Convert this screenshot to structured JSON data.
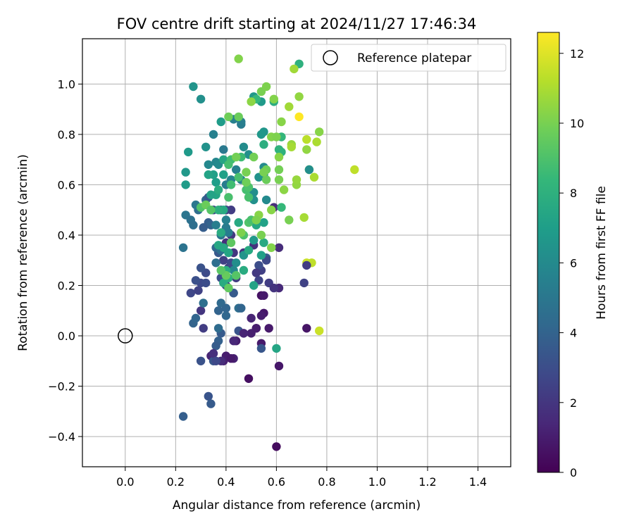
{
  "chart_data": {
    "type": "scatter",
    "title": "FOV centre drift starting at 2024/11/27 17:46:34",
    "xlabel": "Angular distance from reference (arcmin)",
    "ylabel": "Rotation from reference (arcmin)",
    "xlim": [
      -0.17,
      1.53
    ],
    "ylim": [
      -0.52,
      1.18
    ],
    "xticks": [
      0.0,
      0.2,
      0.4,
      0.6,
      0.8,
      1.0,
      1.2,
      1.4
    ],
    "xtick_labels": [
      "0.0",
      "0.2",
      "0.4",
      "0.6",
      "0.8",
      "1.0",
      "1.2",
      "1.4"
    ],
    "yticks": [
      -0.4,
      -0.2,
      0.0,
      0.2,
      0.4,
      0.6,
      0.8,
      1.0
    ],
    "ytick_labels": [
      "−0.4",
      "−0.2",
      "0.0",
      "0.2",
      "0.4",
      "0.6",
      "0.8",
      "1.0"
    ],
    "grid": true,
    "legend": {
      "position": "top-right",
      "entries": [
        "Reference platepar"
      ]
    },
    "reference_point": {
      "label": "Reference platepar",
      "x": 0.0,
      "y": 0.0,
      "marker": "open-circle"
    },
    "colorbar": {
      "label": "Hours from first FF file",
      "colormap": "viridis",
      "range": [
        0,
        12.6
      ],
      "ticks": [
        0,
        2,
        4,
        6,
        8,
        10,
        12
      ],
      "tick_labels": [
        "0",
        "2",
        "4",
        "6",
        "8",
        "10",
        "12"
      ]
    },
    "colormap_stops": [
      "#440154",
      "#482878",
      "#3e4989",
      "#31688e",
      "#26828e",
      "#1f9e89",
      "#35b779",
      "#6ece58",
      "#b5de2b",
      "#fde725"
    ],
    "points": [
      [
        0.6,
        -0.44,
        0.4
      ],
      [
        0.49,
        -0.17,
        0.5
      ],
      [
        0.61,
        -0.12,
        0.8
      ],
      [
        0.54,
        -0.03,
        0.9
      ],
      [
        0.4,
        -0.08,
        1.0
      ],
      [
        0.43,
        -0.09,
        1.2
      ],
      [
        0.39,
        -0.1,
        1.1
      ],
      [
        0.34,
        -0.08,
        1.3
      ],
      [
        0.44,
        -0.02,
        1.0
      ],
      [
        0.5,
        0.01,
        1.1
      ],
      [
        0.52,
        0.03,
        1.2
      ],
      [
        0.57,
        0.03,
        0.9
      ],
      [
        0.72,
        0.03,
        0.7
      ],
      [
        0.55,
        0.09,
        0.8
      ],
      [
        0.54,
        0.08,
        1.0
      ],
      [
        0.54,
        0.16,
        0.6
      ],
      [
        0.5,
        0.07,
        1.3
      ],
      [
        0.47,
        0.01,
        1.5
      ],
      [
        0.61,
        0.19,
        1.5
      ],
      [
        0.61,
        0.35,
        1.6
      ],
      [
        0.51,
        0.36,
        1.8
      ],
      [
        0.47,
        0.33,
        1.9
      ],
      [
        0.43,
        0.33,
        2.0
      ],
      [
        0.42,
        0.4,
        2.1
      ],
      [
        0.4,
        0.37,
        1.7
      ],
      [
        0.59,
        0.51,
        1.6
      ],
      [
        0.42,
        0.5,
        2.3
      ],
      [
        0.4,
        0.5,
        2.5
      ],
      [
        0.44,
        0.23,
        2.2
      ],
      [
        0.4,
        0.2,
        2.4
      ],
      [
        0.43,
        0.17,
        2.6
      ],
      [
        0.3,
        0.1,
        2.0
      ],
      [
        0.31,
        0.03,
        2.3
      ],
      [
        0.26,
        0.17,
        2.7
      ],
      [
        0.29,
        0.18,
        2.5
      ],
      [
        0.3,
        0.21,
        2.8
      ],
      [
        0.32,
        0.21,
        3.0
      ],
      [
        0.28,
        0.22,
        3.1
      ],
      [
        0.32,
        0.25,
        2.9
      ],
      [
        0.3,
        0.27,
        3.2
      ],
      [
        0.38,
        0.23,
        3.0
      ],
      [
        0.41,
        0.27,
        2.1
      ],
      [
        0.39,
        0.3,
        2.4
      ],
      [
        0.42,
        0.29,
        2.8
      ],
      [
        0.37,
        0.33,
        3.5
      ],
      [
        0.45,
        0.02,
        3.3
      ],
      [
        0.38,
        0.01,
        3.6
      ],
      [
        0.37,
        -0.02,
        3.9
      ],
      [
        0.35,
        -0.1,
        3.4
      ],
      [
        0.3,
        -0.1,
        3.2
      ],
      [
        0.36,
        -0.04,
        3.7
      ],
      [
        0.54,
        -0.05,
        3.4
      ],
      [
        0.33,
        -0.24,
        3.3
      ],
      [
        0.34,
        -0.27,
        3.6
      ],
      [
        0.23,
        -0.32,
        3.8
      ],
      [
        0.27,
        0.05,
        4.0
      ],
      [
        0.28,
        0.07,
        4.1
      ],
      [
        0.31,
        0.13,
        4.6
      ],
      [
        0.38,
        0.13,
        4.3
      ],
      [
        0.4,
        0.11,
        4.1
      ],
      [
        0.37,
        0.1,
        4.0
      ],
      [
        0.4,
        0.08,
        4.2
      ],
      [
        0.45,
        0.11,
        4.5
      ],
      [
        0.46,
        0.11,
        4.1
      ],
      [
        0.37,
        0.03,
        4.4
      ],
      [
        0.43,
        0.17,
        3.6
      ],
      [
        0.33,
        0.45,
        3.8
      ],
      [
        0.34,
        0.44,
        4.0
      ],
      [
        0.32,
        0.54,
        4.2
      ],
      [
        0.33,
        0.55,
        3.5
      ],
      [
        0.35,
        0.5,
        3.0
      ],
      [
        0.38,
        0.5,
        3.4
      ],
      [
        0.36,
        0.35,
        4.2
      ],
      [
        0.36,
        0.29,
        4.6
      ],
      [
        0.38,
        0.34,
        4.7
      ],
      [
        0.23,
        0.35,
        4.8
      ],
      [
        0.24,
        0.48,
        4.9
      ],
      [
        0.26,
        0.46,
        4.7
      ],
      [
        0.27,
        0.44,
        4.6
      ],
      [
        0.29,
        0.5,
        4.5
      ],
      [
        0.28,
        0.52,
        5.0
      ],
      [
        0.31,
        0.43,
        3.7
      ],
      [
        0.38,
        0.4,
        5.0
      ],
      [
        0.4,
        0.43,
        5.2
      ],
      [
        0.41,
        0.41,
        5.3
      ],
      [
        0.36,
        0.44,
        5.4
      ],
      [
        0.4,
        0.46,
        5.5
      ],
      [
        0.4,
        0.6,
        5.3
      ],
      [
        0.42,
        0.62,
        5.7
      ],
      [
        0.44,
        0.66,
        5.5
      ],
      [
        0.46,
        0.62,
        5.6
      ],
      [
        0.36,
        0.69,
        5.8
      ],
      [
        0.33,
        0.68,
        5.9
      ],
      [
        0.37,
        0.68,
        6.0
      ],
      [
        0.39,
        0.74,
        5.1
      ],
      [
        0.46,
        0.84,
        5.2
      ],
      [
        0.46,
        0.85,
        5.4
      ],
      [
        0.43,
        0.86,
        5.5
      ],
      [
        0.47,
        0.75,
        6.1
      ],
      [
        0.49,
        0.72,
        6.3
      ],
      [
        0.55,
        0.67,
        6.0
      ],
      [
        0.53,
        0.63,
        6.4
      ],
      [
        0.55,
        0.64,
        6.5
      ],
      [
        0.51,
        0.57,
        6.2
      ],
      [
        0.56,
        0.54,
        6.0
      ],
      [
        0.51,
        0.54,
        6.3
      ],
      [
        0.56,
        0.31,
        3.6
      ],
      [
        0.53,
        0.22,
        2.6
      ],
      [
        0.57,
        0.21,
        2.3
      ],
      [
        0.56,
        0.3,
        2.8
      ],
      [
        0.54,
        0.26,
        2.4
      ],
      [
        0.53,
        0.28,
        3.0
      ],
      [
        0.52,
        0.25,
        2.1
      ],
      [
        0.43,
        0.26,
        5.9
      ],
      [
        0.44,
        0.29,
        6.2
      ],
      [
        0.47,
        0.32,
        6.5
      ],
      [
        0.51,
        0.38,
        6.7
      ],
      [
        0.54,
        0.93,
        6.8
      ],
      [
        0.51,
        0.95,
        6.7
      ],
      [
        0.55,
        0.81,
        6.6
      ],
      [
        0.54,
        0.8,
        6.7
      ],
      [
        0.38,
        0.85,
        6.9
      ],
      [
        0.35,
        0.8,
        5.5
      ],
      [
        0.3,
        0.94,
        6.3
      ],
      [
        0.27,
        0.99,
        6.5
      ],
      [
        0.25,
        0.73,
        6.8
      ],
      [
        0.24,
        0.65,
        6.7
      ],
      [
        0.24,
        0.6,
        6.9
      ],
      [
        0.32,
        0.75,
        6.4
      ],
      [
        0.36,
        0.61,
        7.0
      ],
      [
        0.35,
        0.64,
        7.1
      ],
      [
        0.33,
        0.64,
        7.3
      ],
      [
        0.36,
        0.56,
        7.4
      ],
      [
        0.34,
        0.56,
        7.3
      ],
      [
        0.37,
        0.58,
        7.8
      ],
      [
        0.39,
        0.7,
        7.4
      ],
      [
        0.39,
        0.64,
        7.1
      ],
      [
        0.39,
        0.5,
        7.6
      ],
      [
        0.38,
        0.41,
        7.7
      ],
      [
        0.39,
        0.35,
        7.5
      ],
      [
        0.37,
        0.36,
        7.5
      ],
      [
        0.41,
        0.33,
        7.4
      ],
      [
        0.4,
        0.26,
        7.8
      ],
      [
        0.39,
        0.21,
        7.7
      ],
      [
        0.41,
        0.23,
        7.9
      ],
      [
        0.37,
        0.5,
        7.9
      ],
      [
        0.45,
        0.45,
        7.6
      ],
      [
        0.47,
        0.26,
        7.7
      ],
      [
        0.49,
        0.34,
        7.6
      ],
      [
        0.51,
        0.2,
        7.3
      ],
      [
        0.52,
        0.44,
        7.5
      ],
      [
        0.55,
        0.37,
        7.6
      ],
      [
        0.55,
        0.45,
        7.2
      ],
      [
        0.54,
        0.32,
        7.1
      ],
      [
        0.55,
        0.76,
        7.9
      ],
      [
        0.6,
        -0.05,
        7.4
      ],
      [
        0.62,
        0.73,
        8.0
      ],
      [
        0.61,
        0.74,
        8.1
      ],
      [
        0.62,
        0.79,
        8.3
      ],
      [
        0.62,
        0.51,
        8.4
      ],
      [
        0.59,
        0.93,
        7.8
      ],
      [
        0.69,
        1.08,
        8.0
      ],
      [
        0.52,
        0.94,
        8.4
      ],
      [
        0.46,
        0.71,
        8.6
      ],
      [
        0.42,
        0.7,
        8.7
      ],
      [
        0.41,
        0.68,
        8.8
      ],
      [
        0.41,
        0.55,
        8.9
      ],
      [
        0.42,
        0.6,
        8.7
      ],
      [
        0.45,
        0.63,
        8.9
      ],
      [
        0.48,
        0.58,
        8.8
      ],
      [
        0.49,
        0.59,
        9.0
      ],
      [
        0.49,
        0.55,
        8.9
      ],
      [
        0.49,
        0.45,
        9.1
      ],
      [
        0.5,
        0.46,
        8.9
      ],
      [
        0.46,
        0.41,
        9.3
      ],
      [
        0.47,
        0.4,
        9.0
      ],
      [
        0.42,
        0.37,
        9.4
      ],
      [
        0.44,
        0.24,
        9.2
      ],
      [
        0.41,
        0.19,
        9.5
      ],
      [
        0.4,
        0.24,
        9.6
      ],
      [
        0.38,
        0.26,
        9.3
      ],
      [
        0.3,
        0.51,
        9.1
      ],
      [
        0.32,
        0.52,
        9.7
      ],
      [
        0.34,
        0.5,
        9.2
      ],
      [
        0.41,
        0.87,
        9.8
      ],
      [
        0.45,
        0.87,
        9.7
      ],
      [
        0.44,
        0.71,
        9.9
      ],
      [
        0.48,
        0.65,
        10.0
      ],
      [
        0.48,
        0.61,
        9.8
      ],
      [
        0.51,
        0.71,
        9.9
      ],
      [
        0.54,
        0.97,
        10.0
      ],
      [
        0.56,
        0.99,
        10.1
      ],
      [
        0.59,
        0.94,
        10.2
      ],
      [
        0.62,
        0.85,
        10.3
      ],
      [
        0.58,
        0.79,
        10.2
      ],
      [
        0.6,
        0.79,
        10.1
      ],
      [
        0.61,
        0.71,
        10.3
      ],
      [
        0.63,
        0.58,
        10.4
      ],
      [
        0.61,
        0.62,
        10.0
      ],
      [
        0.61,
        0.66,
        9.9
      ],
      [
        0.56,
        0.66,
        9.8
      ],
      [
        0.56,
        0.62,
        9.7
      ],
      [
        0.55,
        0.65,
        10.0
      ],
      [
        0.53,
        0.48,
        10.3
      ],
      [
        0.52,
        0.46,
        10.1
      ],
      [
        0.58,
        0.5,
        10.3
      ],
      [
        0.58,
        0.35,
        10.2
      ],
      [
        0.54,
        0.4,
        10.0
      ],
      [
        0.46,
        0.41,
        10.1
      ],
      [
        0.45,
        1.1,
        10.2
      ],
      [
        0.5,
        0.93,
        10.4
      ],
      [
        0.65,
        0.46,
        10.0
      ],
      [
        0.66,
        0.76,
        10.6
      ],
      [
        0.67,
        1.06,
        10.8
      ],
      [
        0.69,
        0.95,
        10.5
      ],
      [
        0.65,
        0.91,
        10.8
      ],
      [
        0.68,
        0.6,
        10.5
      ],
      [
        0.68,
        0.62,
        10.6
      ],
      [
        0.66,
        0.75,
        10.9
      ],
      [
        0.72,
        0.74,
        10.5
      ],
      [
        0.71,
        0.47,
        10.9
      ],
      [
        0.75,
        0.63,
        11.0
      ],
      [
        0.76,
        0.77,
        11.0
      ],
      [
        0.77,
        0.81,
        10.3
      ],
      [
        0.72,
        0.78,
        11.3
      ],
      [
        0.73,
        0.66,
        11.1
      ],
      [
        0.72,
        0.29,
        11.6
      ],
      [
        0.74,
        0.29,
        11.4
      ],
      [
        0.91,
        0.66,
        11.4
      ],
      [
        0.77,
        0.02,
        11.6
      ],
      [
        0.69,
        0.87,
        12.6
      ],
      [
        0.73,
        0.66,
        6.2
      ],
      [
        0.72,
        0.28,
        2.2
      ],
      [
        0.71,
        0.21,
        2.5
      ],
      [
        0.59,
        0.19,
        1.9
      ],
      [
        0.55,
        0.16,
        0.9
      ],
      [
        0.47,
        0.01,
        1.3
      ],
      [
        0.52,
        0.03,
        1.0
      ],
      [
        0.43,
        -0.02,
        1.4
      ],
      [
        0.42,
        -0.09,
        0.9
      ],
      [
        0.38,
        -0.1,
        1.6
      ],
      [
        0.35,
        -0.07,
        1.8
      ],
      [
        0.36,
        -0.1,
        2.8
      ]
    ]
  }
}
